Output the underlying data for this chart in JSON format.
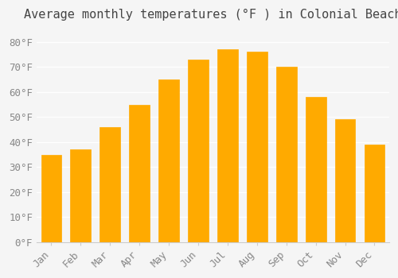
{
  "months": [
    "Jan",
    "Feb",
    "Mar",
    "Apr",
    "May",
    "Jun",
    "Jul",
    "Aug",
    "Sep",
    "Oct",
    "Nov",
    "Dec"
  ],
  "values": [
    35,
    37,
    46,
    55,
    65,
    73,
    77,
    76,
    70,
    58,
    49,
    39
  ],
  "bar_color": "#FFAA00",
  "bar_edge_color": "#E8950A",
  "title": "Average monthly temperatures (°F ) in Colonial Beach",
  "ylim": [
    0,
    85
  ],
  "yticks": [
    0,
    10,
    20,
    30,
    40,
    50,
    60,
    70,
    80
  ],
  "ytick_labels": [
    "0°F",
    "10°F",
    "20°F",
    "30°F",
    "40°F",
    "50°F",
    "60°F",
    "70°F",
    "80°F"
  ],
  "background_color": "#f5f5f5",
  "grid_color": "#ffffff",
  "title_fontsize": 11,
  "tick_fontsize": 9
}
